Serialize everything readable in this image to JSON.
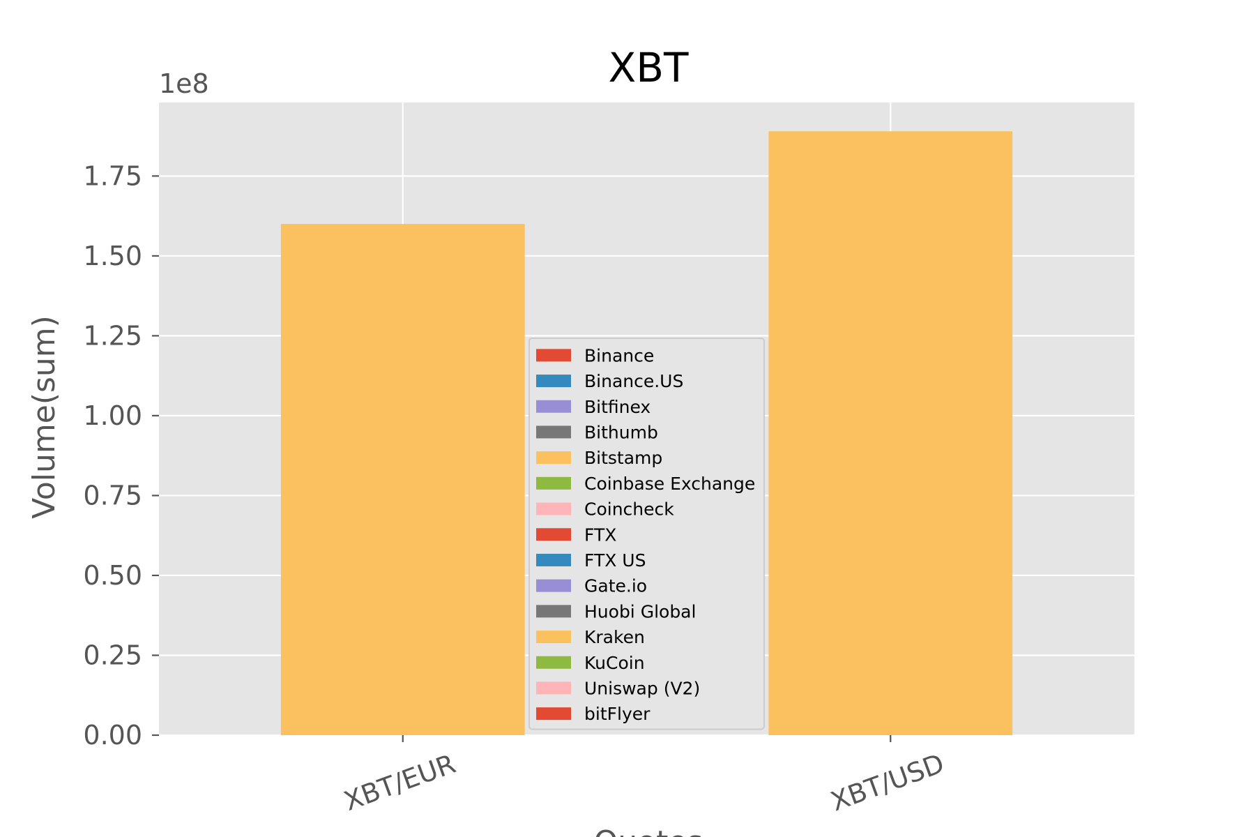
{
  "chart_data": {
    "type": "bar",
    "title": "XBT",
    "xlabel": "Quotes",
    "ylabel": "Volume(sum)",
    "y_offset_label": "1e8",
    "categories": [
      "XBT/EUR",
      "XBT/USD"
    ],
    "ylim": [
      0,
      1.98
    ],
    "yticks": [
      0.0,
      0.25,
      0.5,
      0.75,
      1.0,
      1.25,
      1.5,
      1.75
    ],
    "ytick_labels": [
      "0.00",
      "0.25",
      "0.50",
      "0.75",
      "1.00",
      "1.25",
      "1.50",
      "1.75"
    ],
    "grid": true,
    "legend_position": "center",
    "series": [
      {
        "name": "Binance",
        "color": "#E24A33",
        "values": [
          0,
          0
        ]
      },
      {
        "name": "Binance.US",
        "color": "#348ABD",
        "values": [
          0,
          0
        ]
      },
      {
        "name": "Bitfinex",
        "color": "#988ED5",
        "values": [
          0,
          0
        ]
      },
      {
        "name": "Bithumb",
        "color": "#777777",
        "values": [
          0,
          0
        ]
      },
      {
        "name": "Bitstamp",
        "color": "#FBC15E",
        "values": [
          0,
          0
        ]
      },
      {
        "name": "Coinbase Exchange",
        "color": "#8EBA42",
        "values": [
          0,
          0
        ]
      },
      {
        "name": "Coincheck",
        "color": "#FFB5B8",
        "values": [
          0,
          0
        ]
      },
      {
        "name": "FTX",
        "color": "#E24A33",
        "values": [
          0,
          0
        ]
      },
      {
        "name": "FTX US",
        "color": "#348ABD",
        "values": [
          0,
          0
        ]
      },
      {
        "name": "Gate.io",
        "color": "#988ED5",
        "values": [
          0,
          0
        ]
      },
      {
        "name": "Huobi Global",
        "color": "#777777",
        "values": [
          0,
          0
        ]
      },
      {
        "name": "Kraken",
        "color": "#FBC15E",
        "values": [
          1.6,
          1.89
        ]
      },
      {
        "name": "KuCoin",
        "color": "#8EBA42",
        "values": [
          0,
          0
        ]
      },
      {
        "name": "Uniswap (V2)",
        "color": "#FFB5B8",
        "values": [
          0,
          0
        ]
      },
      {
        "name": "bitFlyer",
        "color": "#E24A33",
        "values": [
          0,
          0
        ]
      }
    ]
  },
  "colors": {
    "plot_background": "#E5E5E5",
    "grid": "#FFFFFF",
    "tick_text": "#555555"
  }
}
